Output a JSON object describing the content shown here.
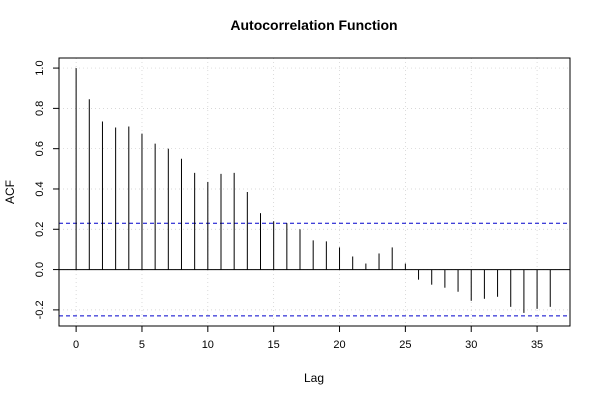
{
  "chart_data": {
    "type": "bar",
    "title": "Autocorrelation Function",
    "xlabel": "Lag",
    "ylabel": "ACF",
    "xlim": [
      -1.3,
      37.5
    ],
    "ylim": [
      -0.28,
      1.05
    ],
    "x_ticks": [
      0,
      5,
      10,
      15,
      20,
      25,
      30,
      35
    ],
    "y_ticks": [
      -0.2,
      0.0,
      0.2,
      0.4,
      0.6,
      0.8,
      1.0
    ],
    "y_tick_labels": [
      "-0.2",
      "0.0",
      "0.2",
      "0.4",
      "0.6",
      "0.8",
      "1.0"
    ],
    "lags": [
      0,
      1,
      2,
      3,
      4,
      5,
      6,
      7,
      8,
      9,
      10,
      11,
      12,
      13,
      14,
      15,
      16,
      17,
      18,
      19,
      20,
      21,
      22,
      23,
      24,
      25,
      26,
      27,
      28,
      29,
      30,
      31,
      32,
      33,
      34,
      35,
      36
    ],
    "acf": [
      1.0,
      0.845,
      0.735,
      0.705,
      0.71,
      0.675,
      0.625,
      0.6,
      0.55,
      0.48,
      0.435,
      0.475,
      0.48,
      0.385,
      0.28,
      0.24,
      0.23,
      0.2,
      0.145,
      0.14,
      0.11,
      0.065,
      0.03,
      0.08,
      0.11,
      0.03,
      -0.05,
      -0.075,
      -0.09,
      -0.11,
      -0.155,
      -0.145,
      -0.135,
      -0.185,
      -0.215,
      -0.195,
      -0.185
    ],
    "confidence_bound": 0.23,
    "grid": true,
    "colors": {
      "bars": "#000000",
      "confidence": "#0000cc",
      "zero_line": "#000000",
      "grid": "#cccccc"
    }
  }
}
